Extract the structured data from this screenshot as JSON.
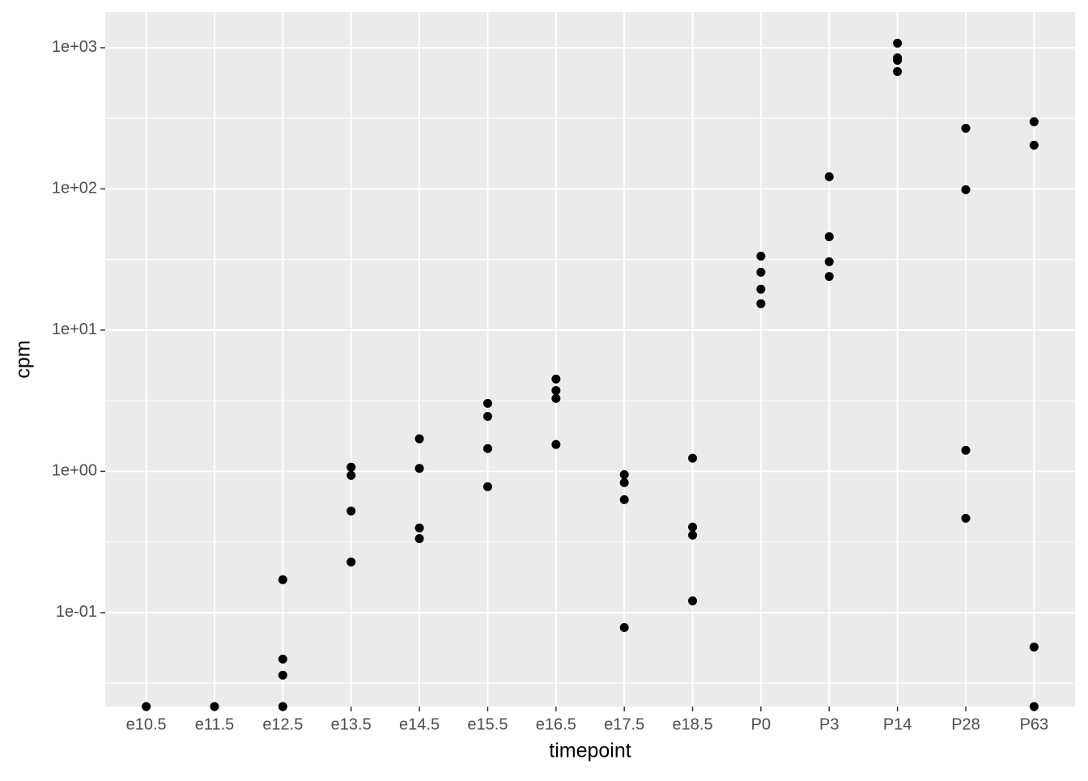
{
  "chart_data": {
    "type": "scatter",
    "x_label": "timepoint",
    "y_label": "cpm",
    "log_y": true,
    "grid": true,
    "minor_grid": true,
    "color": "#000000",
    "categories": [
      "e10.5",
      "e11.5",
      "e12.5",
      "e13.5",
      "e14.5",
      "e15.5",
      "e16.5",
      "e17.5",
      "e18.5",
      "P0",
      "P3",
      "P14",
      "P28",
      "P63"
    ],
    "x": [
      "e10.5",
      "e11.5",
      "e12.5",
      "e12.5",
      "e12.5",
      "e12.5",
      "e13.5",
      "e13.5",
      "e13.5",
      "e13.5",
      "e14.5",
      "e14.5",
      "e14.5",
      "e14.5",
      "e15.5",
      "e15.5",
      "e15.5",
      "e15.5",
      "e16.5",
      "e16.5",
      "e16.5",
      "e16.5",
      "e17.5",
      "e17.5",
      "e17.5",
      "e17.5",
      "e18.5",
      "e18.5",
      "e18.5",
      "e18.5",
      "P0",
      "P0",
      "P0",
      "P0",
      "P3",
      "P3",
      "P3",
      "P3",
      "P14",
      "P14",
      "P14",
      "P14",
      "P28",
      "P28",
      "P28",
      "P28",
      "P63",
      "P63",
      "P63",
      "P63"
    ],
    "values": [
      0,
      0,
      0.171,
      0.0468,
      0.036,
      0,
      1.07,
      0.936,
      0.524,
      0.228,
      1.7,
      1.05,
      0.397,
      0.334,
      3.03,
      2.45,
      1.45,
      0.778,
      4.5,
      3.74,
      3.28,
      1.55,
      0.949,
      0.831,
      0.63,
      0.0783,
      1.24,
      0.403,
      0.353,
      0.121,
      33.4,
      25.7,
      19.5,
      15.4,
      122,
      45.9,
      30.5,
      24.0,
      1076,
      848,
      815,
      678,
      269,
      98.7,
      1.41,
      0.465,
      299,
      204,
      0.057,
      0
    ],
    "ylim": [
      0.0216,
      1786
    ],
    "yticks": [
      {
        "value": 0.1,
        "label": "1e-01"
      },
      {
        "value": 1,
        "label": "1e+00"
      },
      {
        "value": 10,
        "label": "1e+01"
      },
      {
        "value": 100,
        "label": "1e+02"
      },
      {
        "value": 1000,
        "label": "1e+03"
      }
    ]
  }
}
